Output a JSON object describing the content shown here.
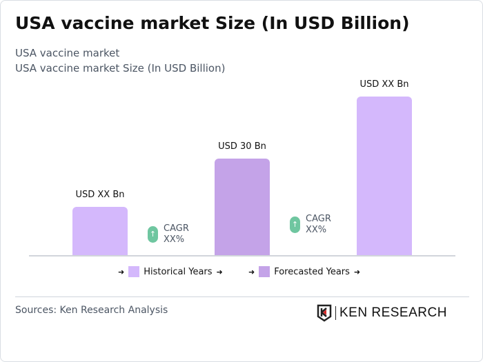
{
  "title": "USA vaccine market Size (In USD Billion)",
  "subtitle1": "USA vaccine market",
  "subtitle2": "USA vaccine market Size (In USD Billion)",
  "chart_data": {
    "type": "bar",
    "categories": [
      "",
      "",
      ""
    ],
    "series": [
      {
        "values": [
          null,
          30,
          null
        ]
      }
    ],
    "data_labels": [
      "USD XX Bn",
      "USD 30 Bn",
      "USD XX Bn"
    ],
    "bar_colors": [
      "#d4b8fc",
      "#c4a3e8",
      "#d4b8fc"
    ],
    "annotations": [
      {
        "label": "CAGR",
        "value": "XX%"
      },
      {
        "label": "CAGR",
        "value": "XX%"
      }
    ],
    "legend": [
      {
        "name": "Historical Years",
        "color": "#d4b8fc"
      },
      {
        "name": "Forecasted Years",
        "color": "#c4a3e8"
      }
    ],
    "legend_position": "bottom",
    "grid": false
  },
  "arrow": "➜",
  "up_arrow": "↑",
  "source": "Sources: Ken Research Analysis",
  "logo_text": "KEN RESEARCH"
}
